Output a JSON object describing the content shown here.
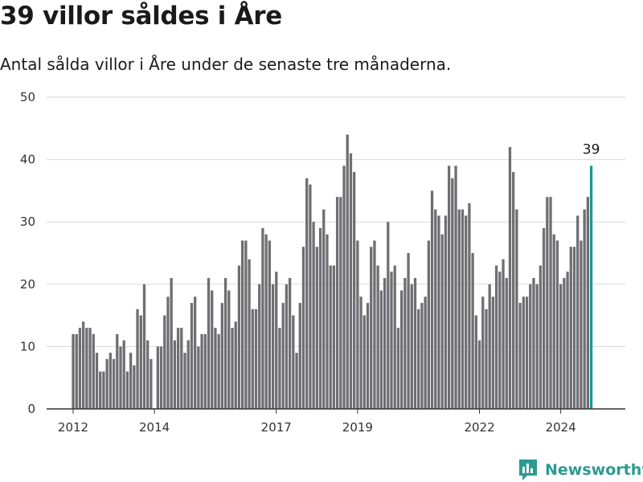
{
  "header": {
    "title": "39 villor såldes i Åre",
    "subtitle": "Antal sålda villor i Åre under de senaste tre månaderna."
  },
  "brand": {
    "name": "Newsworthy",
    "icon": "newsworthy-logo-icon"
  },
  "colors": {
    "bar": "#6e6e73",
    "highlight": "#1a9a93",
    "grid": "#d9d9d9",
    "axis": "#333333",
    "brand": "#2b9a92"
  },
  "chart_data": {
    "type": "bar",
    "title": "39 villor såldes i Åre",
    "subtitle": "Antal sålda villor i Åre under de senaste tre månaderna.",
    "xlabel": "",
    "ylabel": "",
    "ylim": [
      0,
      50
    ],
    "yticks": [
      0,
      10,
      20,
      30,
      40,
      50
    ],
    "grid": true,
    "legend": "none",
    "x_start": "2012-01",
    "x_end": "2024-12",
    "xticks": [
      {
        "label": "2012",
        "date": "2012-01"
      },
      {
        "label": "2014",
        "date": "2014-01"
      },
      {
        "label": "2017",
        "date": "2017-01"
      },
      {
        "label": "2019",
        "date": "2019-01"
      },
      {
        "label": "2022",
        "date": "2022-01"
      },
      {
        "label": "2024",
        "date": "2024-01"
      }
    ],
    "series": [
      {
        "x": [
          "2012-01",
          "2012-02",
          "2012-03",
          "2012-04",
          "2012-05",
          "2012-06",
          "2012-07",
          "2012-08",
          "2012-09",
          "2012-10",
          "2012-11",
          "2012-12",
          "2013-01",
          "2013-02",
          "2013-03",
          "2013-04",
          "2013-05",
          "2013-06",
          "2013-07",
          "2013-08",
          "2013-09",
          "2013-10",
          "2013-11",
          "2013-12",
          "2014-01",
          "2014-02",
          "2014-03",
          "2014-04",
          "2014-05",
          "2014-06",
          "2014-07",
          "2014-08",
          "2014-09",
          "2014-10",
          "2014-11",
          "2014-12",
          "2015-01",
          "2015-02",
          "2015-03",
          "2015-04",
          "2015-05",
          "2015-06",
          "2015-07",
          "2015-08",
          "2015-09",
          "2015-10",
          "2015-11",
          "2015-12",
          "2016-01",
          "2016-02",
          "2016-03",
          "2016-04",
          "2016-05",
          "2016-06",
          "2016-07",
          "2016-08",
          "2016-09",
          "2016-10",
          "2016-11",
          "2016-12",
          "2017-01",
          "2017-02",
          "2017-03",
          "2017-04",
          "2017-05",
          "2017-06",
          "2017-07",
          "2017-08",
          "2017-09",
          "2017-10",
          "2017-11",
          "2017-12",
          "2018-01",
          "2018-02",
          "2018-03",
          "2018-04",
          "2018-05",
          "2018-06",
          "2018-07",
          "2018-08",
          "2018-09",
          "2018-10",
          "2018-11",
          "2018-12",
          "2019-01",
          "2019-02",
          "2019-03",
          "2019-04",
          "2019-05",
          "2019-06",
          "2019-07",
          "2019-08",
          "2019-09",
          "2019-10",
          "2019-11",
          "2019-12",
          "2020-01",
          "2020-02",
          "2020-03",
          "2020-04",
          "2020-05",
          "2020-06",
          "2020-07",
          "2020-08",
          "2020-09",
          "2020-10",
          "2020-11",
          "2020-12",
          "2021-01",
          "2021-02",
          "2021-03",
          "2021-04",
          "2021-05",
          "2021-06",
          "2021-07",
          "2021-08",
          "2021-09",
          "2021-10",
          "2021-11",
          "2021-12",
          "2022-01",
          "2022-02",
          "2022-03",
          "2022-04",
          "2022-05",
          "2022-06",
          "2022-07",
          "2022-08",
          "2022-09",
          "2022-10",
          "2022-11",
          "2022-12",
          "2023-01",
          "2023-02",
          "2023-03",
          "2023-04",
          "2023-05",
          "2023-06",
          "2023-07",
          "2023-08",
          "2023-09",
          "2023-10",
          "2023-11",
          "2023-12",
          "2024-01",
          "2024-02",
          "2024-03",
          "2024-04",
          "2024-05",
          "2024-06",
          "2024-07",
          "2024-08",
          "2024-09",
          "2024-10"
        ],
        "values": [
          12,
          12,
          13,
          14,
          13,
          13,
          12,
          9,
          6,
          6,
          8,
          9,
          8,
          12,
          10,
          11,
          6,
          9,
          7,
          16,
          15,
          20,
          11,
          8,
          null,
          10,
          10,
          15,
          18,
          21,
          11,
          13,
          13,
          9,
          11,
          17,
          18,
          10,
          12,
          12,
          21,
          19,
          13,
          12,
          17,
          21,
          19,
          13,
          14,
          23,
          27,
          27,
          24,
          16,
          16,
          20,
          29,
          28,
          27,
          20,
          22,
          13,
          17,
          20,
          21,
          15,
          9,
          17,
          26,
          37,
          36,
          30,
          26,
          29,
          32,
          28,
          23,
          23,
          34,
          34,
          39,
          44,
          41,
          38,
          27,
          18,
          15,
          17,
          26,
          27,
          23,
          19,
          21,
          30,
          22,
          23,
          13,
          19,
          21,
          25,
          20,
          21,
          16,
          17,
          18,
          27,
          35,
          32,
          31,
          28,
          31,
          39,
          37,
          39,
          32,
          32,
          31,
          33,
          25,
          15,
          11,
          18,
          16,
          20,
          18,
          23,
          22,
          24,
          21,
          42,
          38,
          32,
          17,
          18,
          18,
          20,
          21,
          20,
          23,
          29,
          34,
          34,
          28,
          27,
          20,
          21,
          22,
          26,
          26,
          31,
          27,
          32,
          34,
          39
        ]
      }
    ],
    "annotation": {
      "label": "39",
      "x": "2024-10",
      "value": 39
    }
  }
}
